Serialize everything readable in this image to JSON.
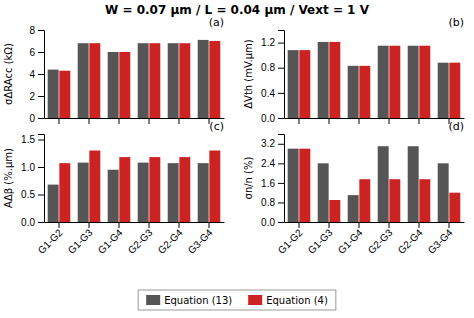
{
  "chart_data": [
    {
      "type": "bar",
      "title": "W = 0.07 μm / L = 0.04 μm / Vext = 1 V",
      "ylabel": "σΔRAcc (kΩ)",
      "annotations": [
        "(a)"
      ],
      "categories": [
        null,
        null,
        null,
        null,
        null,
        null
      ],
      "series": [
        {
          "name": "Equation (13)",
          "color": "#555555",
          "values": [
            4.4,
            6.8,
            6.0,
            6.8,
            6.8,
            7.1
          ]
        },
        {
          "name": "Equation (4)",
          "color": "#cc2222",
          "values": [
            4.3,
            6.8,
            6.0,
            6.8,
            6.8,
            7.0
          ]
        }
      ],
      "ylim": [
        0,
        8
      ],
      "yticks": [
        0,
        2,
        4,
        6,
        8
      ],
      "grid": false,
      "legend": "bottom"
    },
    {
      "type": "bar",
      "ylabel": "ΔVth (mV.μm)",
      "annotations": [
        "(b)"
      ],
      "categories": [
        null,
        null,
        null,
        null,
        null,
        null
      ],
      "series": [
        {
          "color": "#555555",
          "values": [
            1.08,
            1.21,
            0.83,
            1.15,
            1.15,
            0.88
          ]
        },
        {
          "color": "#cc2222",
          "values": [
            1.08,
            1.21,
            0.83,
            1.15,
            1.15,
            0.88
          ]
        }
      ],
      "ylim": [
        0.0,
        1.4
      ],
      "yticks": [
        {
          "value": 0.0,
          "label": "0.0"
        },
        0.4,
        0.8,
        1.2
      ],
      "grid": false
    },
    {
      "type": "bar",
      "ylabel": "AΔβ (%.μm)",
      "annotations": [
        "(c)"
      ],
      "categories": [
        "G1-G2",
        "G1-G3",
        "G1-G4",
        "G2-G3",
        "G2-G4",
        "G3-G4"
      ],
      "series": [
        {
          "color": "#555555",
          "values": [
            0.68,
            1.08,
            0.95,
            1.08,
            1.07,
            1.07
          ]
        },
        {
          "color": "#cc2222",
          "values": [
            1.07,
            1.3,
            1.18,
            1.18,
            1.18,
            1.3
          ]
        }
      ],
      "ylim": [
        0.0,
        1.6
      ],
      "yticks": [
        {
          "value": 0.0,
          "label": "0.0"
        },
        0.5,
        {
          "value": 1.0,
          "label": "1.0"
        },
        1.5
      ],
      "grid": false
    },
    {
      "type": "bar",
      "ylabel": "σn/n (%)",
      "annotations": [
        "(d)"
      ],
      "categories": [
        "G1-G2",
        "G1-G3",
        "G1-G4",
        "G2-G3",
        "G2-G4",
        "G3-G4"
      ],
      "series": [
        {
          "color": "#555555",
          "values": [
            3.0,
            2.4,
            1.1,
            3.1,
            3.1,
            2.4
          ]
        },
        {
          "color": "#cc2222",
          "values": [
            3.0,
            0.9,
            1.75,
            1.75,
            1.75,
            1.2
          ]
        }
      ],
      "ylim": [
        0.0,
        3.6
      ],
      "yticks": [
        {
          "value": 0.0,
          "label": "0.0"
        },
        0.8,
        1.6,
        2.4,
        3.2
      ],
      "grid": false
    }
  ]
}
